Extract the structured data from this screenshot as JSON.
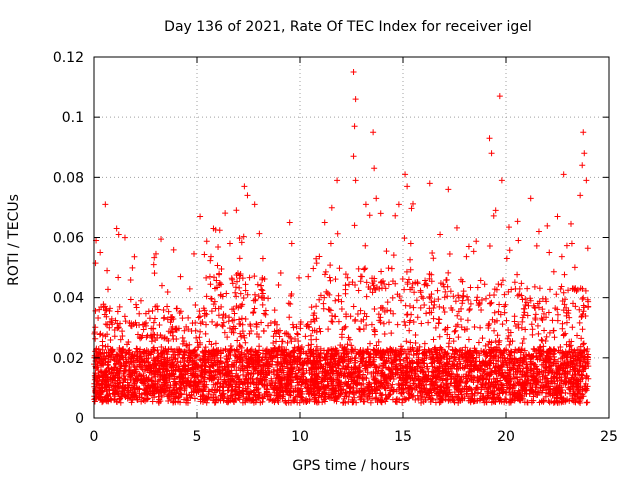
{
  "chart_data": {
    "type": "scatter",
    "title": "Day 136 of 2021, Rate Of TEC Index for receiver igel",
    "xlabel": "GPS time / hours",
    "ylabel": "ROTI / TECUs",
    "xlim": [
      0,
      25
    ],
    "ylim": [
      0,
      0.12
    ],
    "xticks": [
      0,
      5,
      10,
      15,
      20,
      25
    ],
    "xtick_labels": [
      "0",
      "5",
      "10",
      "15",
      "20",
      "25"
    ],
    "yticks": [
      0,
      0.02,
      0.04,
      0.06,
      0.08,
      0.1,
      0.12
    ],
    "ytick_labels": [
      "0",
      "0.02",
      "0.04",
      "0.06",
      "0.08",
      "0.1",
      "0.12"
    ],
    "grid": true,
    "marker": "+",
    "color": "#ff0000",
    "series": [
      {
        "name": "ROTI",
        "points": [
          [
            0.55,
            0.071
          ],
          [
            1.1,
            0.063
          ],
          [
            1.2,
            0.061
          ],
          [
            2.9,
            0.051
          ],
          [
            5.15,
            0.067
          ],
          [
            5.8,
            0.063
          ],
          [
            7.3,
            0.077
          ],
          [
            7.45,
            0.074
          ],
          [
            7.8,
            0.071
          ],
          [
            9.5,
            0.065
          ],
          [
            9.6,
            0.058
          ],
          [
            11.2,
            0.065
          ],
          [
            11.8,
            0.079
          ],
          [
            12.6,
            0.115
          ],
          [
            12.7,
            0.106
          ],
          [
            12.65,
            0.097
          ],
          [
            12.6,
            0.087
          ],
          [
            12.7,
            0.079
          ],
          [
            13.2,
            0.071
          ],
          [
            13.55,
            0.095
          ],
          [
            13.6,
            0.083
          ],
          [
            13.7,
            0.073
          ],
          [
            14.8,
            0.071
          ],
          [
            15.1,
            0.081
          ],
          [
            15.2,
            0.077
          ],
          [
            16.3,
            0.078
          ],
          [
            17.2,
            0.076
          ],
          [
            19.2,
            0.093
          ],
          [
            19.3,
            0.088
          ],
          [
            19.7,
            0.107
          ],
          [
            19.8,
            0.079
          ],
          [
            19.5,
            0.069
          ],
          [
            21.2,
            0.073
          ],
          [
            22.5,
            0.067
          ],
          [
            22.8,
            0.081
          ],
          [
            23.75,
            0.095
          ],
          [
            23.8,
            0.088
          ],
          [
            23.7,
            0.084
          ],
          [
            23.9,
            0.079
          ],
          [
            23.6,
            0.074
          ],
          [
            0.1,
            0.059
          ],
          [
            0.3,
            0.055
          ],
          [
            3.3,
            0.044
          ],
          [
            4.2,
            0.047
          ],
          [
            6.6,
            0.058
          ],
          [
            8.2,
            0.053
          ],
          [
            10.4,
            0.047
          ],
          [
            11.5,
            0.058
          ],
          [
            16.8,
            0.061
          ],
          [
            18.2,
            0.057
          ],
          [
            20.6,
            0.059
          ],
          [
            21.6,
            0.062
          ],
          [
            22.1,
            0.055
          ],
          [
            23.2,
            0.058
          ]
        ]
      }
    ]
  }
}
